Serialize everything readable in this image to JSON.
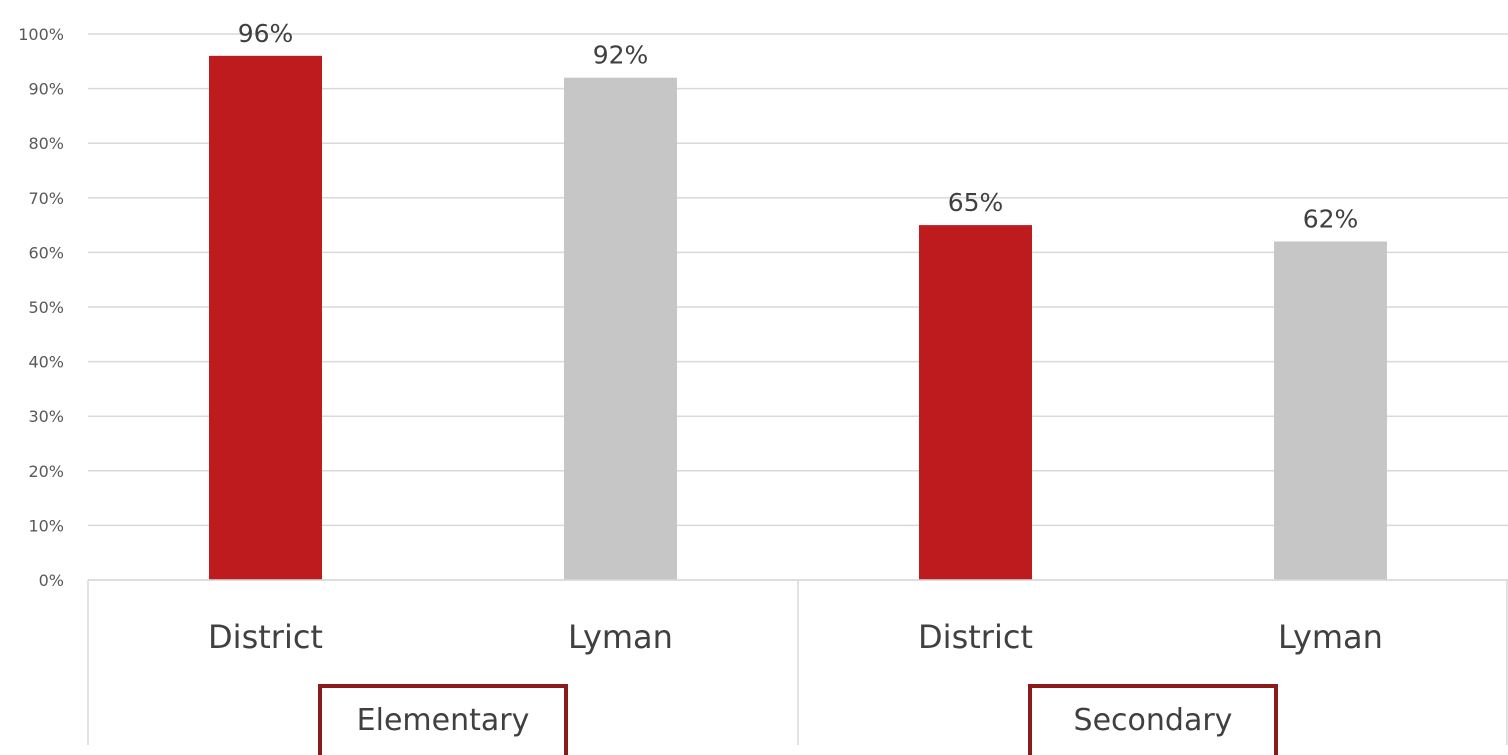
{
  "chart_data": {
    "type": "bar",
    "title": "",
    "xlabel": "",
    "ylabel": "",
    "ylim": [
      0,
      100
    ],
    "y_ticks": [
      0,
      10,
      20,
      30,
      40,
      50,
      60,
      70,
      80,
      90,
      100
    ],
    "y_tick_suffix": "%",
    "grid": true,
    "legend": "none",
    "groups": [
      {
        "label": "Elementary",
        "categories": [
          {
            "label": "District",
            "value": 96,
            "display": "96%",
            "color": "#BD1B1E"
          },
          {
            "label": "Lyman",
            "value": 92,
            "display": "92%",
            "color": "#C6C6C6"
          }
        ]
      },
      {
        "label": "Secondary",
        "categories": [
          {
            "label": "District",
            "value": 65,
            "display": "65%",
            "color": "#BD1B1E"
          },
          {
            "label": "Lyman",
            "value": 62,
            "display": "62%",
            "color": "#C6C6C6"
          }
        ]
      }
    ],
    "colors": {
      "district": "#BD1B1E",
      "lyman": "#C6C6C6",
      "group_box_border": "#8B1A1A",
      "grid": "#D9D9D9",
      "axis_text": "#595959"
    }
  }
}
